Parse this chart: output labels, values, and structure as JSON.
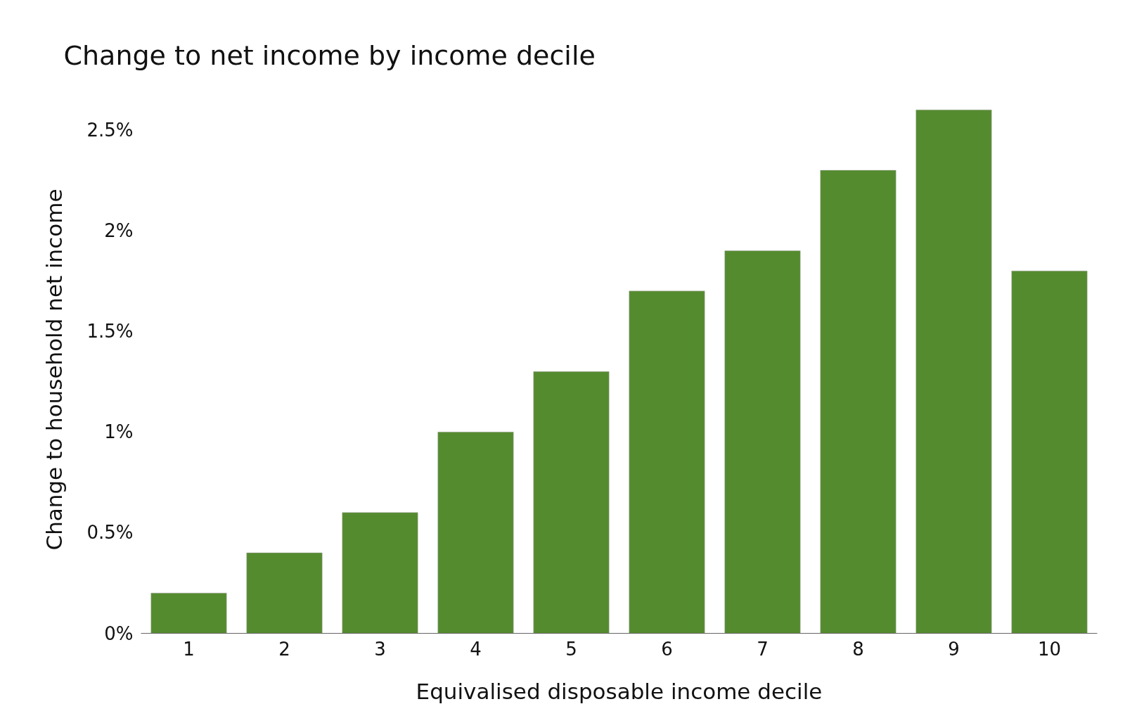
{
  "chart_data": {
    "type": "bar",
    "title": "Change to net income by income decile",
    "xlabel": "Equivalised disposable income decile",
    "ylabel": "Change to household net income",
    "categories": [
      "1",
      "2",
      "3",
      "4",
      "5",
      "6",
      "7",
      "8",
      "9",
      "10"
    ],
    "values": [
      0.2,
      0.4,
      0.6,
      1.0,
      1.3,
      1.7,
      1.9,
      2.3,
      2.6,
      1.8
    ],
    "color": "#558b2f",
    "ylim": [
      0,
      2.62
    ],
    "yticks": [
      {
        "value": 0,
        "label": "0%"
      },
      {
        "value": 0.5,
        "label": "0.5%"
      },
      {
        "value": 1,
        "label": "1%"
      },
      {
        "value": 1.5,
        "label": "1.5%"
      },
      {
        "value": 2,
        "label": "2%"
      },
      {
        "value": 2.5,
        "label": "2.5%"
      }
    ],
    "grid": false
  }
}
